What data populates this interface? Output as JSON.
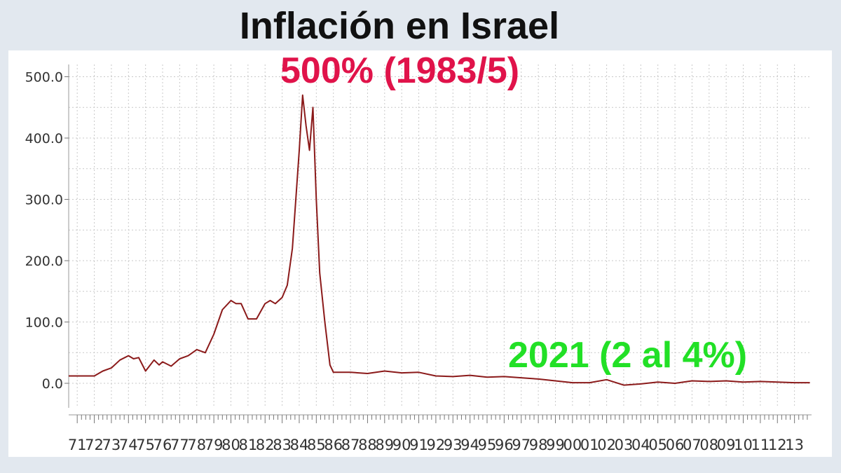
{
  "title": "Inflación en Israel",
  "annotations": {
    "peak": "500% (1983/5)",
    "current": "2021 (2 al 4%)"
  },
  "colors": {
    "line": "#8b1a1a",
    "peak_annotation": "#e0134a",
    "current_annotation": "#22e026",
    "background": "#e2e8ef"
  },
  "chart_data": {
    "type": "line",
    "title": "Inflación en Israel",
    "xlabel": "",
    "ylabel": "",
    "grid": true,
    "ylim": [
      -40,
      520
    ],
    "xlim": [
      1970.5,
      2014.0
    ],
    "y_ticks": [
      "0.0",
      "100.0",
      "200.0",
      "300.0",
      "400.0",
      "500.0"
    ],
    "y_tick_values": [
      0,
      100,
      200,
      300,
      400,
      500
    ],
    "x_ticks": [
      "71",
      "72",
      "73",
      "74",
      "75",
      "76",
      "77",
      "78",
      "79",
      "80",
      "81",
      "82",
      "83",
      "84",
      "85",
      "86",
      "87",
      "88",
      "89",
      "90",
      "91",
      "92",
      "93",
      "94",
      "95",
      "96",
      "97",
      "98",
      "99",
      "00",
      "01",
      "02",
      "03",
      "04",
      "05",
      "06",
      "07",
      "08",
      "09",
      "10",
      "11",
      "12",
      "13"
    ],
    "x_tick_years": [
      1971,
      1972,
      1973,
      1974,
      1975,
      1976,
      1977,
      1978,
      1979,
      1980,
      1981,
      1982,
      1983,
      1984,
      1985,
      1986,
      1987,
      1988,
      1989,
      1990,
      1991,
      1992,
      1993,
      1994,
      1995,
      1996,
      1997,
      1998,
      1999,
      2000,
      2001,
      2002,
      2003,
      2004,
      2005,
      2006,
      2007,
      2008,
      2009,
      2010,
      2011,
      2012,
      2013
    ],
    "series": [
      {
        "x": [
          1970.5,
          1971.0,
          1972.0,
          1972.5,
          1973.0,
          1973.5,
          1974.0,
          1974.3,
          1974.6,
          1975.0,
          1975.5,
          1975.8,
          1976.0,
          1976.5,
          1977.0,
          1977.5,
          1978.0,
          1978.5,
          1979.0,
          1979.5,
          1980.0,
          1980.3,
          1980.6,
          1981.0,
          1981.5,
          1982.0,
          1982.3,
          1982.6,
          1983.0,
          1983.3,
          1983.6,
          1983.8,
          1984.0,
          1984.2,
          1984.4,
          1984.6,
          1984.8,
          1985.0,
          1985.2,
          1985.5,
          1985.8,
          1986.0,
          1987.0,
          1988.0,
          1989.0,
          1990.0,
          1991.0,
          1992.0,
          1993.0,
          1994.0,
          1995.0,
          1996.0,
          1997.0,
          1998.0,
          1999.0,
          2000.0,
          2001.0,
          2002.0,
          2003.0,
          2004.0,
          2005.0,
          2006.0,
          2007.0,
          2008.0,
          2009.0,
          2010.0,
          2011.0,
          2012.0,
          2013.0,
          2013.9
        ],
        "y": [
          12,
          12,
          12,
          20,
          25,
          38,
          45,
          40,
          42,
          20,
          38,
          30,
          35,
          28,
          40,
          45,
          55,
          50,
          80,
          120,
          135,
          130,
          130,
          105,
          105,
          130,
          135,
          130,
          140,
          160,
          220,
          300,
          380,
          470,
          420,
          380,
          450,
          300,
          180,
          100,
          30,
          18,
          18,
          16,
          20,
          17,
          18,
          12,
          11,
          13,
          10,
          11,
          9,
          7,
          4,
          1,
          1,
          6,
          -3,
          -1,
          2,
          0,
          4,
          3,
          4,
          2,
          3,
          2,
          1,
          1
        ]
      }
    ]
  }
}
